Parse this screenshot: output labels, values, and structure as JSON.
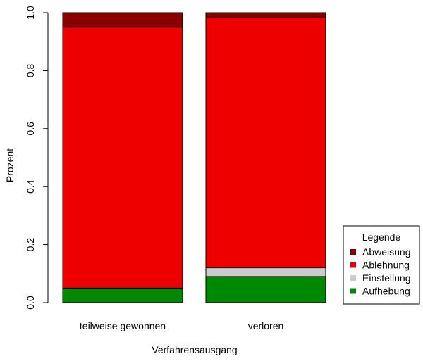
{
  "chart_data": {
    "type": "bar",
    "stacked": true,
    "categories": [
      "teilweise gewonnen",
      "verloren"
    ],
    "series": [
      {
        "name": "Aufhebung",
        "color": "#008800",
        "values": [
          0.05,
          0.09
        ]
      },
      {
        "name": "Einstellung",
        "color": "#cccccc",
        "values": [
          0.0,
          0.03
        ]
      },
      {
        "name": "Ablehnung",
        "color": "#ee0000",
        "values": [
          0.9,
          0.865
        ]
      },
      {
        "name": "Abweisung",
        "color": "#880000",
        "values": [
          0.05,
          0.015
        ]
      }
    ],
    "xlabel": "Verfahrensausgang",
    "ylabel": "Prozent",
    "ylim": [
      0,
      1
    ],
    "yticks": [
      "0.0",
      "0.2",
      "0.4",
      "0.6",
      "0.8",
      "1.0"
    ],
    "legend": {
      "title": "Legende",
      "placement": "bottom-right",
      "entries": [
        "Abweisung",
        "Ablehnung",
        "Einstellung",
        "Aufhebung"
      ]
    }
  }
}
